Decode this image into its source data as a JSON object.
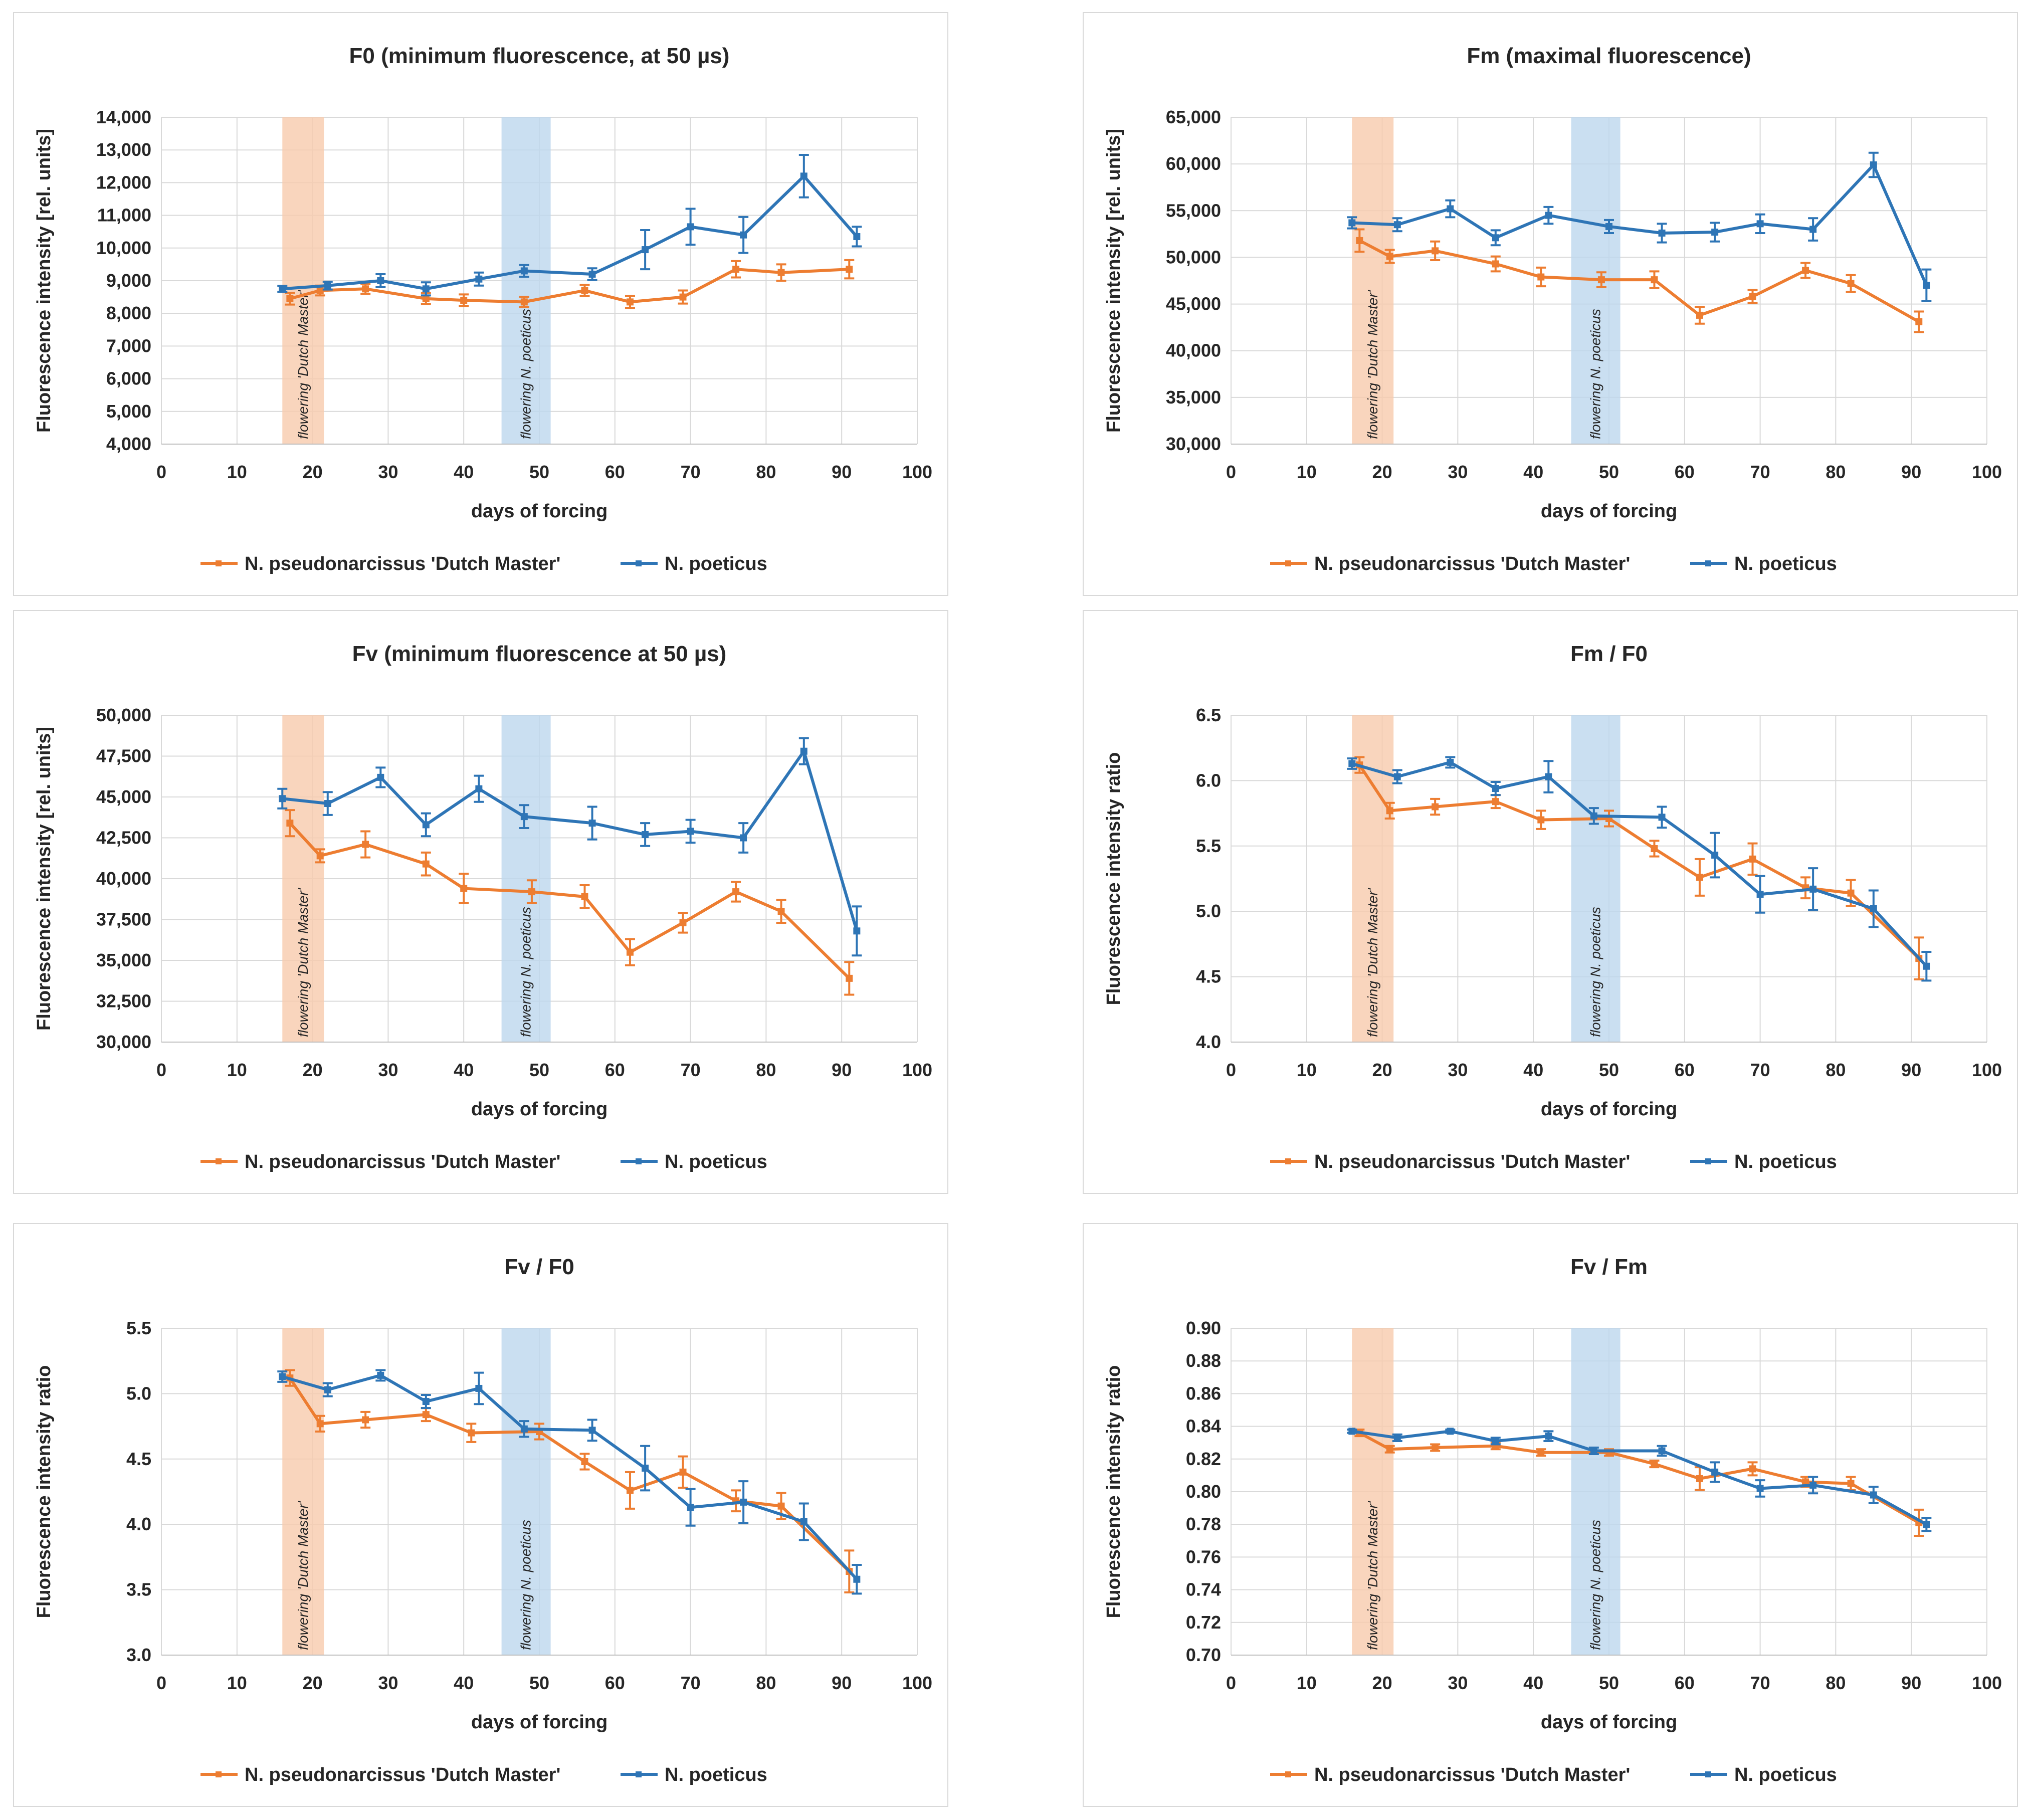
{
  "colors": {
    "dutch_master": "#ED7D31",
    "poeticus": "#2E75B6",
    "band_dutch": "#F8CBAD",
    "band_poeticus": "#BDD7EE",
    "grid": "#D9D9D9",
    "text": "#262626"
  },
  "chart_data": [
    {
      "id": "f0",
      "type": "line",
      "title": "F0 (minimum fluorescence, at 50 µs)",
      "xlabel": "days of forcing",
      "ylabel": "Fluorescence intensity [rel. units]",
      "xlim": [
        0,
        100
      ],
      "ylim": [
        4000,
        14000
      ],
      "xticks": [
        0,
        10,
        20,
        30,
        40,
        50,
        60,
        70,
        80,
        90,
        100
      ],
      "x_tick_labels": [
        "0",
        "10",
        "20",
        "30",
        "40",
        "50",
        "60",
        "70",
        "80",
        "90",
        "100"
      ],
      "yticks": [
        4000,
        5000,
        6000,
        7000,
        8000,
        9000,
        10000,
        11000,
        12000,
        13000,
        14000
      ],
      "y_tick_labels": [
        "4,000",
        "5,000",
        "6,000",
        "7,000",
        "8,000",
        "9,000",
        "10,000",
        "11,000",
        "12,000",
        "13,000",
        "14,000"
      ],
      "bands": [
        {
          "label": "flowering 'Dutch Master'",
          "x0": 16,
          "x1": 21.5,
          "color_key": "band_dutch"
        },
        {
          "label": "flowering N. poeticus",
          "x0": 45,
          "x1": 51.5,
          "color_key": "band_poeticus"
        }
      ],
      "series": [
        {
          "name": "N. pseudonarcissus 'Dutch Master'",
          "color_key": "dutch_master",
          "x": [
            17,
            21,
            27,
            35,
            40,
            48,
            56,
            62,
            69,
            76,
            82,
            91
          ],
          "values": [
            8450,
            8700,
            8750,
            8450,
            8400,
            8350,
            8700,
            8350,
            8500,
            9350,
            9250,
            9350
          ],
          "errors": [
            180,
            150,
            150,
            170,
            180,
            160,
            170,
            180,
            200,
            250,
            250,
            280
          ]
        },
        {
          "name": "N. poeticus",
          "color_key": "poeticus",
          "x": [
            16,
            22,
            29,
            35,
            42,
            48,
            57,
            64,
            70,
            77,
            85,
            92
          ],
          "values": [
            8750,
            8850,
            9000,
            8750,
            9050,
            9300,
            9200,
            9950,
            10650,
            10400,
            12200,
            10350
          ],
          "errors": [
            90,
            120,
            200,
            200,
            200,
            180,
            180,
            600,
            550,
            550,
            650,
            300
          ]
        }
      ]
    },
    {
      "id": "fm",
      "type": "line",
      "title": "Fm (maximal fluorescence)",
      "xlabel": "days of forcing",
      "ylabel": "Fluorescence intensity [rel. units]",
      "xlim": [
        0,
        100
      ],
      "ylim": [
        30000,
        65000
      ],
      "xticks": [
        0,
        10,
        20,
        30,
        40,
        50,
        60,
        70,
        80,
        90,
        100
      ],
      "x_tick_labels": [
        "0",
        "10",
        "20",
        "30",
        "40",
        "50",
        "60",
        "70",
        "80",
        "90",
        "100"
      ],
      "yticks": [
        30000,
        35000,
        40000,
        45000,
        50000,
        55000,
        60000,
        65000
      ],
      "y_tick_labels": [
        "30,000",
        "35,000",
        "40,000",
        "45,000",
        "50,000",
        "55,000",
        "60,000",
        "65,000"
      ],
      "bands": [
        {
          "label": "flowering 'Dutch Master'",
          "x0": 16,
          "x1": 21.5,
          "color_key": "band_dutch"
        },
        {
          "label": "flowering N. poeticus",
          "x0": 45,
          "x1": 51.5,
          "color_key": "band_poeticus"
        }
      ],
      "series": [
        {
          "name": "N. pseudonarcissus 'Dutch Master'",
          "color_key": "dutch_master",
          "x": [
            17,
            21,
            27,
            35,
            41,
            49,
            56,
            62,
            69,
            76,
            82,
            91
          ],
          "values": [
            51800,
            50100,
            50700,
            49300,
            47900,
            47600,
            47600,
            43800,
            45800,
            48600,
            47200,
            43100
          ],
          "errors": [
            1200,
            700,
            1000,
            800,
            1000,
            800,
            900,
            900,
            700,
            800,
            900,
            1100
          ]
        },
        {
          "name": "N. poeticus",
          "color_key": "poeticus",
          "x": [
            16,
            22,
            29,
            35,
            42,
            50,
            57,
            64,
            70,
            77,
            85,
            92
          ],
          "values": [
            53700,
            53500,
            55200,
            52100,
            54500,
            53300,
            52600,
            52700,
            53600,
            53000,
            59900,
            47000
          ],
          "errors": [
            600,
            700,
            900,
            800,
            900,
            700,
            1000,
            1000,
            1000,
            1200,
            1300,
            1700
          ]
        }
      ]
    },
    {
      "id": "fv",
      "type": "line",
      "title": "Fv (minimum fluorescence at 50 µs)",
      "xlabel": "days of forcing",
      "ylabel": "Fluorescence intensity [rel. units]",
      "xlim": [
        0,
        100
      ],
      "ylim": [
        30000,
        50000
      ],
      "xticks": [
        0,
        10,
        20,
        30,
        40,
        50,
        60,
        70,
        80,
        90,
        100
      ],
      "x_tick_labels": [
        "0",
        "10",
        "20",
        "30",
        "40",
        "50",
        "60",
        "70",
        "80",
        "90",
        "100"
      ],
      "yticks": [
        30000,
        32500,
        35000,
        37500,
        40000,
        42500,
        45000,
        47500,
        50000
      ],
      "y_tick_labels": [
        "30,000",
        "32,500",
        "35,000",
        "37,500",
        "40,000",
        "42,500",
        "45,000",
        "47,500",
        "50,000"
      ],
      "bands": [
        {
          "label": "flowering 'Dutch Master'",
          "x0": 16,
          "x1": 21.5,
          "color_key": "band_dutch"
        },
        {
          "label": "flowering N. poeticus",
          "x0": 45,
          "x1": 51.5,
          "color_key": "band_poeticus"
        }
      ],
      "series": [
        {
          "name": "N. pseudonarcissus 'Dutch Master'",
          "color_key": "dutch_master",
          "x": [
            17,
            21,
            27,
            35,
            40,
            49,
            56,
            62,
            69,
            76,
            82,
            91
          ],
          "values": [
            43400,
            41400,
            42100,
            40900,
            39400,
            39200,
            38900,
            35500,
            37300,
            39200,
            38000,
            33900
          ],
          "errors": [
            800,
            400,
            800,
            700,
            900,
            700,
            700,
            800,
            600,
            600,
            700,
            1000
          ]
        },
        {
          "name": "N. poeticus",
          "color_key": "poeticus",
          "x": [
            16,
            22,
            29,
            35,
            42,
            48,
            57,
            64,
            70,
            77,
            85,
            92
          ],
          "values": [
            44900,
            44600,
            46200,
            43300,
            45500,
            43800,
            43400,
            42700,
            42900,
            42500,
            47800,
            36800
          ],
          "errors": [
            600,
            700,
            600,
            700,
            800,
            700,
            1000,
            700,
            700,
            900,
            800,
            1500
          ]
        }
      ]
    },
    {
      "id": "fm_f0",
      "type": "line",
      "title": "Fm / F0",
      "xlabel": "days of forcing",
      "ylabel": "Fluorescence intensity ratio",
      "xlim": [
        0,
        100
      ],
      "ylim": [
        4.0,
        6.5
      ],
      "xticks": [
        0,
        10,
        20,
        30,
        40,
        50,
        60,
        70,
        80,
        90,
        100
      ],
      "x_tick_labels": [
        "0",
        "10",
        "20",
        "30",
        "40",
        "50",
        "60",
        "70",
        "80",
        "90",
        "100"
      ],
      "yticks": [
        4.0,
        4.5,
        5.0,
        5.5,
        6.0,
        6.5
      ],
      "y_tick_labels": [
        "4.0",
        "4.5",
        "5.0",
        "5.5",
        "6.0",
        "6.5"
      ],
      "bands": [
        {
          "label": "flowering 'Dutch Master'",
          "x0": 16,
          "x1": 21.5,
          "color_key": "band_dutch"
        },
        {
          "label": "flowering N. poeticus",
          "x0": 45,
          "x1": 51.5,
          "color_key": "band_poeticus"
        }
      ],
      "series": [
        {
          "name": "N. pseudonarcissus 'Dutch Master'",
          "color_key": "dutch_master",
          "x": [
            17,
            21,
            27,
            35,
            41,
            50,
            56,
            62,
            69,
            76,
            82,
            91
          ],
          "values": [
            6.12,
            5.77,
            5.8,
            5.84,
            5.7,
            5.71,
            5.48,
            5.26,
            5.4,
            5.18,
            5.14,
            4.64
          ],
          "errors": [
            0.06,
            0.06,
            0.06,
            0.05,
            0.07,
            0.06,
            0.06,
            0.14,
            0.12,
            0.08,
            0.1,
            0.16
          ]
        },
        {
          "name": "N. poeticus",
          "color_key": "poeticus",
          "x": [
            16,
            22,
            29,
            35,
            42,
            48,
            57,
            64,
            70,
            77,
            85,
            92
          ],
          "values": [
            6.13,
            6.03,
            6.14,
            5.94,
            6.03,
            5.73,
            5.72,
            5.43,
            5.13,
            5.17,
            5.02,
            4.58
          ],
          "errors": [
            0.04,
            0.05,
            0.04,
            0.05,
            0.12,
            0.06,
            0.08,
            0.17,
            0.14,
            0.16,
            0.14,
            0.11
          ]
        }
      ]
    },
    {
      "id": "fv_f0",
      "type": "line",
      "title": "Fv / F0",
      "xlabel": "days of forcing",
      "ylabel": "Fluorescence intensity ratio",
      "xlim": [
        0,
        100
      ],
      "ylim": [
        3.0,
        5.5
      ],
      "xticks": [
        0,
        10,
        20,
        30,
        40,
        50,
        60,
        70,
        80,
        90,
        100
      ],
      "x_tick_labels": [
        "0",
        "10",
        "20",
        "30",
        "40",
        "50",
        "60",
        "70",
        "80",
        "90",
        "100"
      ],
      "yticks": [
        3.0,
        3.5,
        4.0,
        4.5,
        5.0,
        5.5
      ],
      "y_tick_labels": [
        "3.0",
        "3.5",
        "4.0",
        "4.5",
        "5.0",
        "5.5"
      ],
      "bands": [
        {
          "label": "flowering 'Dutch Master'",
          "x0": 16,
          "x1": 21.5,
          "color_key": "band_dutch"
        },
        {
          "label": "flowering N. poeticus",
          "x0": 45,
          "x1": 51.5,
          "color_key": "band_poeticus"
        }
      ],
      "series": [
        {
          "name": "N. pseudonarcissus 'Dutch Master'",
          "color_key": "dutch_master",
          "x": [
            17,
            21,
            27,
            35,
            41,
            50,
            56,
            62,
            69,
            76,
            82,
            91
          ],
          "values": [
            5.12,
            4.77,
            4.8,
            4.84,
            4.7,
            4.71,
            4.48,
            4.26,
            4.4,
            4.18,
            4.14,
            3.64
          ],
          "errors": [
            0.06,
            0.06,
            0.06,
            0.05,
            0.07,
            0.06,
            0.06,
            0.14,
            0.12,
            0.08,
            0.1,
            0.16
          ]
        },
        {
          "name": "N. poeticus",
          "color_key": "poeticus",
          "x": [
            16,
            22,
            29,
            35,
            42,
            48,
            57,
            64,
            70,
            77,
            85,
            92
          ],
          "values": [
            5.13,
            5.03,
            5.14,
            4.94,
            5.04,
            4.73,
            4.72,
            4.43,
            4.13,
            4.17,
            4.02,
            3.58
          ],
          "errors": [
            0.04,
            0.05,
            0.04,
            0.05,
            0.12,
            0.06,
            0.08,
            0.17,
            0.14,
            0.16,
            0.14,
            0.11
          ]
        }
      ]
    },
    {
      "id": "fv_fm",
      "type": "line",
      "title": "Fv / Fm",
      "xlabel": "days of forcing",
      "ylabel": "Fluorescence intensity ratio",
      "xlim": [
        0,
        100
      ],
      "ylim": [
        0.7,
        0.9
      ],
      "xticks": [
        0,
        10,
        20,
        30,
        40,
        50,
        60,
        70,
        80,
        90,
        100
      ],
      "x_tick_labels": [
        "0",
        "10",
        "20",
        "30",
        "40",
        "50",
        "60",
        "70",
        "80",
        "90",
        "100"
      ],
      "yticks": [
        0.7,
        0.72,
        0.74,
        0.76,
        0.78,
        0.8,
        0.82,
        0.84,
        0.86,
        0.88,
        0.9
      ],
      "y_tick_labels": [
        "0.70",
        "0.72",
        "0.74",
        "0.76",
        "0.78",
        "0.80",
        "0.82",
        "0.84",
        "0.86",
        "0.88",
        "0.90"
      ],
      "bands": [
        {
          "label": "flowering 'Dutch Master'",
          "x0": 16,
          "x1": 21.5,
          "color_key": "band_dutch"
        },
        {
          "label": "flowering N. poeticus",
          "x0": 45,
          "x1": 51.5,
          "color_key": "band_poeticus"
        }
      ],
      "series": [
        {
          "name": "N. pseudonarcissus 'Dutch Master'",
          "color_key": "dutch_master",
          "x": [
            17,
            21,
            27,
            35,
            41,
            50,
            56,
            62,
            69,
            76,
            82,
            91
          ],
          "values": [
            0.836,
            0.826,
            0.827,
            0.828,
            0.824,
            0.824,
            0.817,
            0.808,
            0.814,
            0.806,
            0.805,
            0.781
          ],
          "errors": [
            0.002,
            0.002,
            0.002,
            0.002,
            0.002,
            0.002,
            0.002,
            0.007,
            0.004,
            0.003,
            0.004,
            0.008
          ]
        },
        {
          "name": "N. poeticus",
          "color_key": "poeticus",
          "x": [
            16,
            22,
            29,
            35,
            42,
            48,
            57,
            64,
            70,
            77,
            85,
            92
          ],
          "values": [
            0.837,
            0.833,
            0.837,
            0.831,
            0.834,
            0.825,
            0.825,
            0.812,
            0.802,
            0.804,
            0.798,
            0.78
          ],
          "errors": [
            0.001,
            0.002,
            0.001,
            0.002,
            0.003,
            0.002,
            0.003,
            0.006,
            0.005,
            0.005,
            0.005,
            0.004
          ]
        }
      ]
    }
  ]
}
